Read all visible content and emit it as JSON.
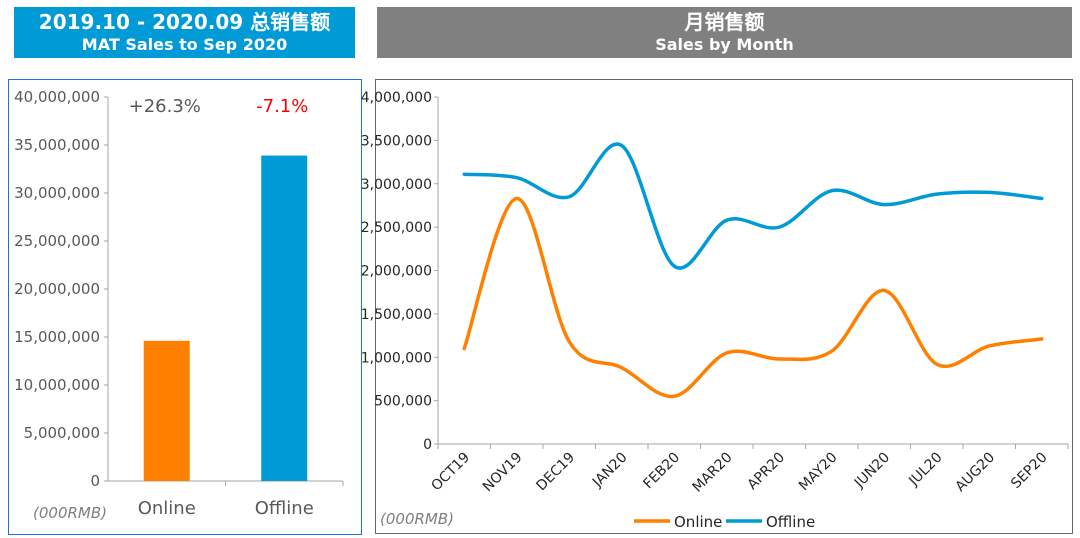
{
  "left_title": {
    "line1": "2019.10 - 2020.09 总销售额",
    "line2": "MAT Sales to Sep 2020"
  },
  "right_title": {
    "line1": "月销售额",
    "line2": "Sales by Month"
  },
  "colors": {
    "online": "#ff8000",
    "offline": "#009ad6",
    "growth_pos": "#595959",
    "growth_neg": "#ff0000"
  },
  "chart_data": [
    {
      "type": "bar",
      "title": "MAT Sales to Sep 2020",
      "unit_label": "(000RMB)",
      "categories": [
        "Online",
        "Offline"
      ],
      "values": [
        14600000,
        33900000
      ],
      "annotations": [
        "+26.3%",
        "-7.1%"
      ],
      "ylim": [
        0,
        40000000
      ],
      "yticks": [
        "0",
        "5,000,000",
        "10,000,000",
        "15,000,000",
        "20,000,000",
        "25,000,000",
        "30,000,000",
        "35,000,000",
        "40,000,000"
      ]
    },
    {
      "type": "line",
      "title": "Sales by Month",
      "unit_label": "(000RMB)",
      "categories": [
        "OCT19",
        "NOV19",
        "DEC19",
        "JAN20",
        "FEB20",
        "MAR20",
        "APR20",
        "MAY20",
        "JUN20",
        "JUL20",
        "AUG20",
        "SEP20"
      ],
      "series": [
        {
          "name": "Online",
          "values": [
            1100000,
            2830000,
            1180000,
            880000,
            550000,
            1050000,
            980000,
            1070000,
            1770000,
            920000,
            1130000,
            1210000
          ]
        },
        {
          "name": "Offline",
          "values": [
            3110000,
            3070000,
            2850000,
            3440000,
            2050000,
            2580000,
            2500000,
            2920000,
            2760000,
            2880000,
            2900000,
            2830000
          ]
        }
      ],
      "ylim": [
        0,
        4000000
      ],
      "yticks": [
        "0",
        "500,000",
        "1,000,000",
        "1,500,000",
        "2,000,000",
        "2,500,000",
        "3,000,000",
        "3,500,000",
        "4,000,000"
      ],
      "legend": "bottom"
    }
  ]
}
